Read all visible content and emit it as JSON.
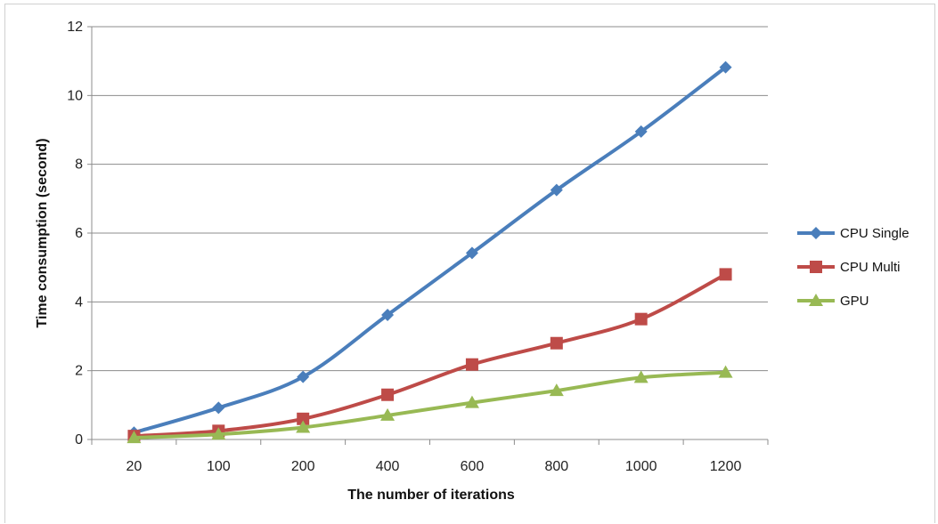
{
  "chart_data": {
    "type": "line",
    "title": "",
    "xlabel": "The number of iterations",
    "ylabel": "Time consumption  (second)",
    "categories": [
      "20",
      "100",
      "200",
      "400",
      "600",
      "800",
      "1000",
      "1200"
    ],
    "ylim": [
      0,
      12
    ],
    "yticks": [
      0,
      2,
      4,
      6,
      8,
      10,
      12
    ],
    "grid": true,
    "legend_position": "right",
    "series": [
      {
        "name": "CPU Single",
        "color": "#4a7ebb",
        "marker": "diamond",
        "values": [
          0.2,
          0.92,
          1.82,
          3.62,
          5.42,
          7.25,
          8.95,
          10.82
        ]
      },
      {
        "name": "CPU Multi",
        "color": "#be4b48",
        "marker": "square",
        "values": [
          0.1,
          0.25,
          0.6,
          1.3,
          2.18,
          2.8,
          3.5,
          4.8
        ]
      },
      {
        "name": "GPU",
        "color": "#98b954",
        "marker": "triangle",
        "values": [
          0.05,
          0.15,
          0.35,
          0.7,
          1.07,
          1.42,
          1.8,
          1.95
        ]
      }
    ]
  }
}
